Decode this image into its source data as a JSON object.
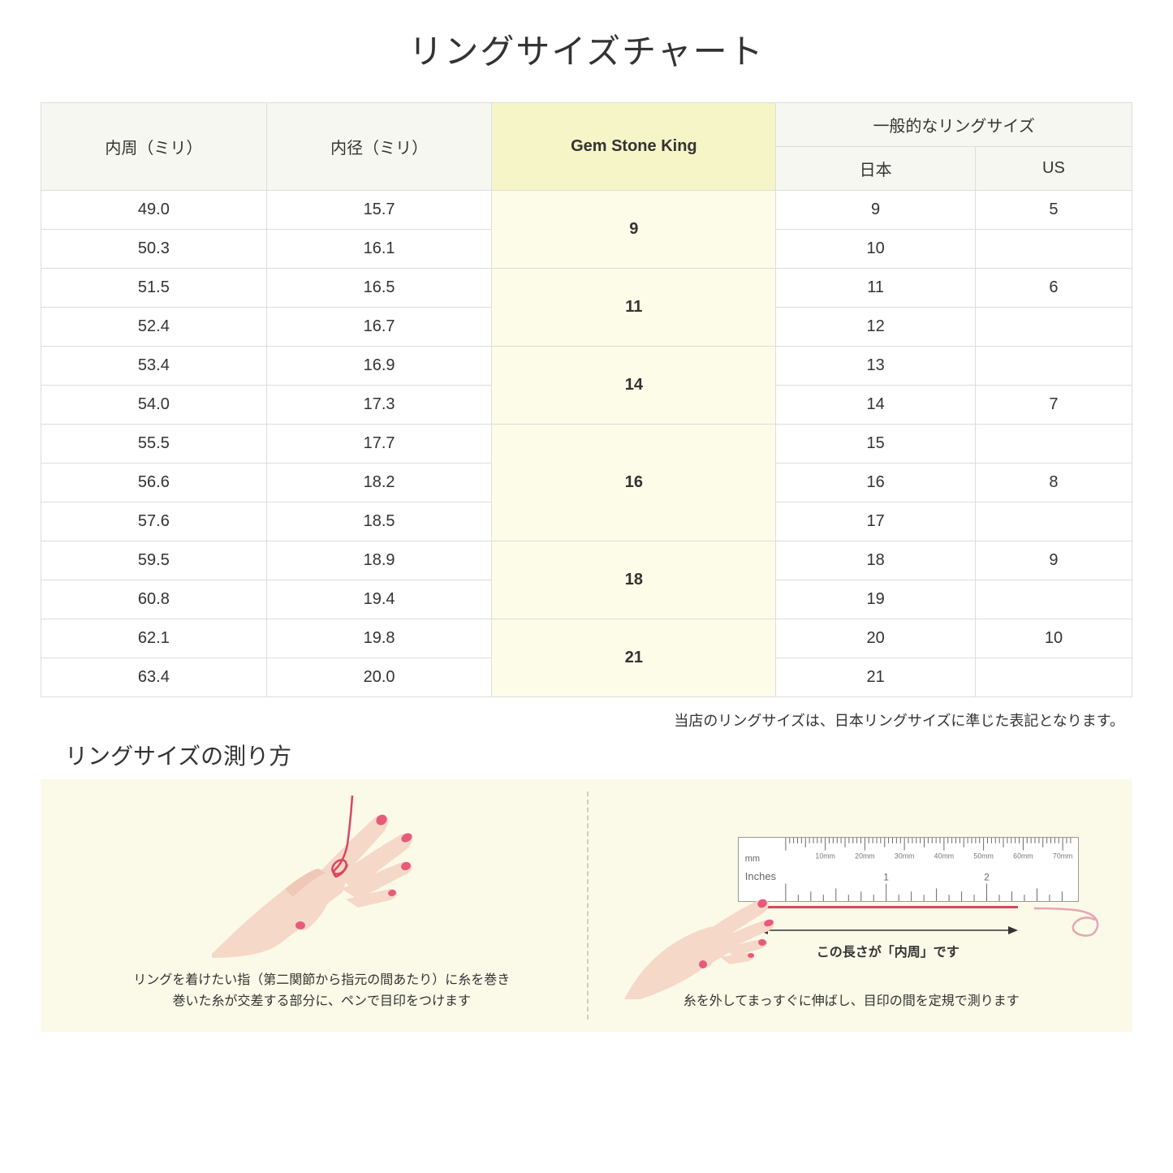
{
  "title": "リングサイズチャート",
  "table": {
    "headers": {
      "col1": "内周（ミリ）",
      "col2": "内径（ミリ）",
      "col3": "Gem Stone King",
      "col4_group": "一般的なリングサイズ",
      "col4a": "日本",
      "col4b": "US"
    },
    "groups": [
      {
        "gsk": "9",
        "rows": [
          {
            "circ": "49.0",
            "dia": "15.7",
            "jp": "9",
            "us": "5"
          },
          {
            "circ": "50.3",
            "dia": "16.1",
            "jp": "10",
            "us": ""
          }
        ]
      },
      {
        "gsk": "11",
        "rows": [
          {
            "circ": "51.5",
            "dia": "16.5",
            "jp": "11",
            "us": "6"
          },
          {
            "circ": "52.4",
            "dia": "16.7",
            "jp": "12",
            "us": ""
          }
        ]
      },
      {
        "gsk": "14",
        "rows": [
          {
            "circ": "53.4",
            "dia": "16.9",
            "jp": "13",
            "us": ""
          },
          {
            "circ": "54.0",
            "dia": "17.3",
            "jp": "14",
            "us": "7"
          }
        ]
      },
      {
        "gsk": "16",
        "rows": [
          {
            "circ": "55.5",
            "dia": "17.7",
            "jp": "15",
            "us": ""
          },
          {
            "circ": "56.6",
            "dia": "18.2",
            "jp": "16",
            "us": "8"
          },
          {
            "circ": "57.6",
            "dia": "18.5",
            "jp": "17",
            "us": ""
          }
        ]
      },
      {
        "gsk": "18",
        "rows": [
          {
            "circ": "59.5",
            "dia": "18.9",
            "jp": "18",
            "us": "9"
          },
          {
            "circ": "60.8",
            "dia": "19.4",
            "jp": "19",
            "us": ""
          }
        ]
      },
      {
        "gsk": "21",
        "rows": [
          {
            "circ": "62.1",
            "dia": "19.8",
            "jp": "20",
            "us": "10"
          },
          {
            "circ": "63.4",
            "dia": "20.0",
            "jp": "21",
            "us": ""
          }
        ]
      }
    ]
  },
  "note": "当店のリングサイズは、日本リングサイズに準じた表記となります。",
  "instructions": {
    "heading": "リングサイズの測り方",
    "left_caption_line1": "リングを着けたい指（第二関節から指元の間あたり）に糸を巻き",
    "left_caption_line2": "巻いた糸が交差する部分に、ペンで目印をつけます",
    "right_arrow_label": "この長さが「内周」です",
    "right_caption": "糸を外してまっすぐに伸ばし、目印の間を定規で測ります",
    "ruler": {
      "mm_label": "mm",
      "inches_label": "Inches",
      "mm_ticks": [
        "10mm",
        "20mm",
        "30mm",
        "40mm",
        "50mm",
        "60mm",
        "70mm"
      ],
      "inch_ticks": [
        "1",
        "2"
      ]
    }
  },
  "colors": {
    "header_bg": "#f7f7f2",
    "highlight_header_bg": "#f5f5c8",
    "highlight_cell_bg": "#fcfce8",
    "border": "#dddddd",
    "instruction_bg": "#fbfae8",
    "skin": "#f6d8c8",
    "skin_shadow": "#e8b8a5",
    "nail": "#e85a7a",
    "thread": "#d94560"
  }
}
